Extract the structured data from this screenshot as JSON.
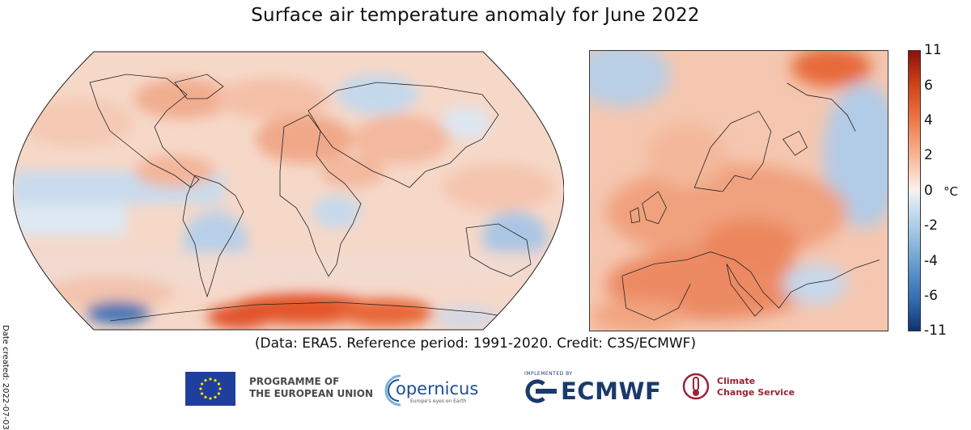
{
  "title": "Surface air temperature anomaly for June 2022",
  "caption": "(Data: ERA5.  Reference period: 1991-2020.  Credit: C3S/ECMWF)",
  "date_created": "Date created: 2022-07-03",
  "colorbar": {
    "unit": "°C",
    "ticks": [
      "11",
      "6",
      "4",
      "2",
      "0",
      "-2",
      "-4",
      "-6",
      "-11"
    ],
    "colors": {
      "max": "#8a1010",
      "mid": "#f7f3f2",
      "min": "#0f3470"
    }
  },
  "maps": {
    "world": {
      "projection": "robinson-like",
      "region": "global"
    },
    "europe": {
      "region": "Europe"
    }
  },
  "logos": {
    "eu": {
      "line1": "PROGRAMME OF",
      "line2": "THE EUROPEAN UNION"
    },
    "copernicus": {
      "name": "opernicus",
      "tagline": "Europe's eyes on Earth"
    },
    "ecmwf": {
      "prefix": "IMPLEMENTED BY",
      "name": "ECMWF"
    },
    "c3s": {
      "line1": "Climate",
      "line2": "Change Service"
    }
  }
}
